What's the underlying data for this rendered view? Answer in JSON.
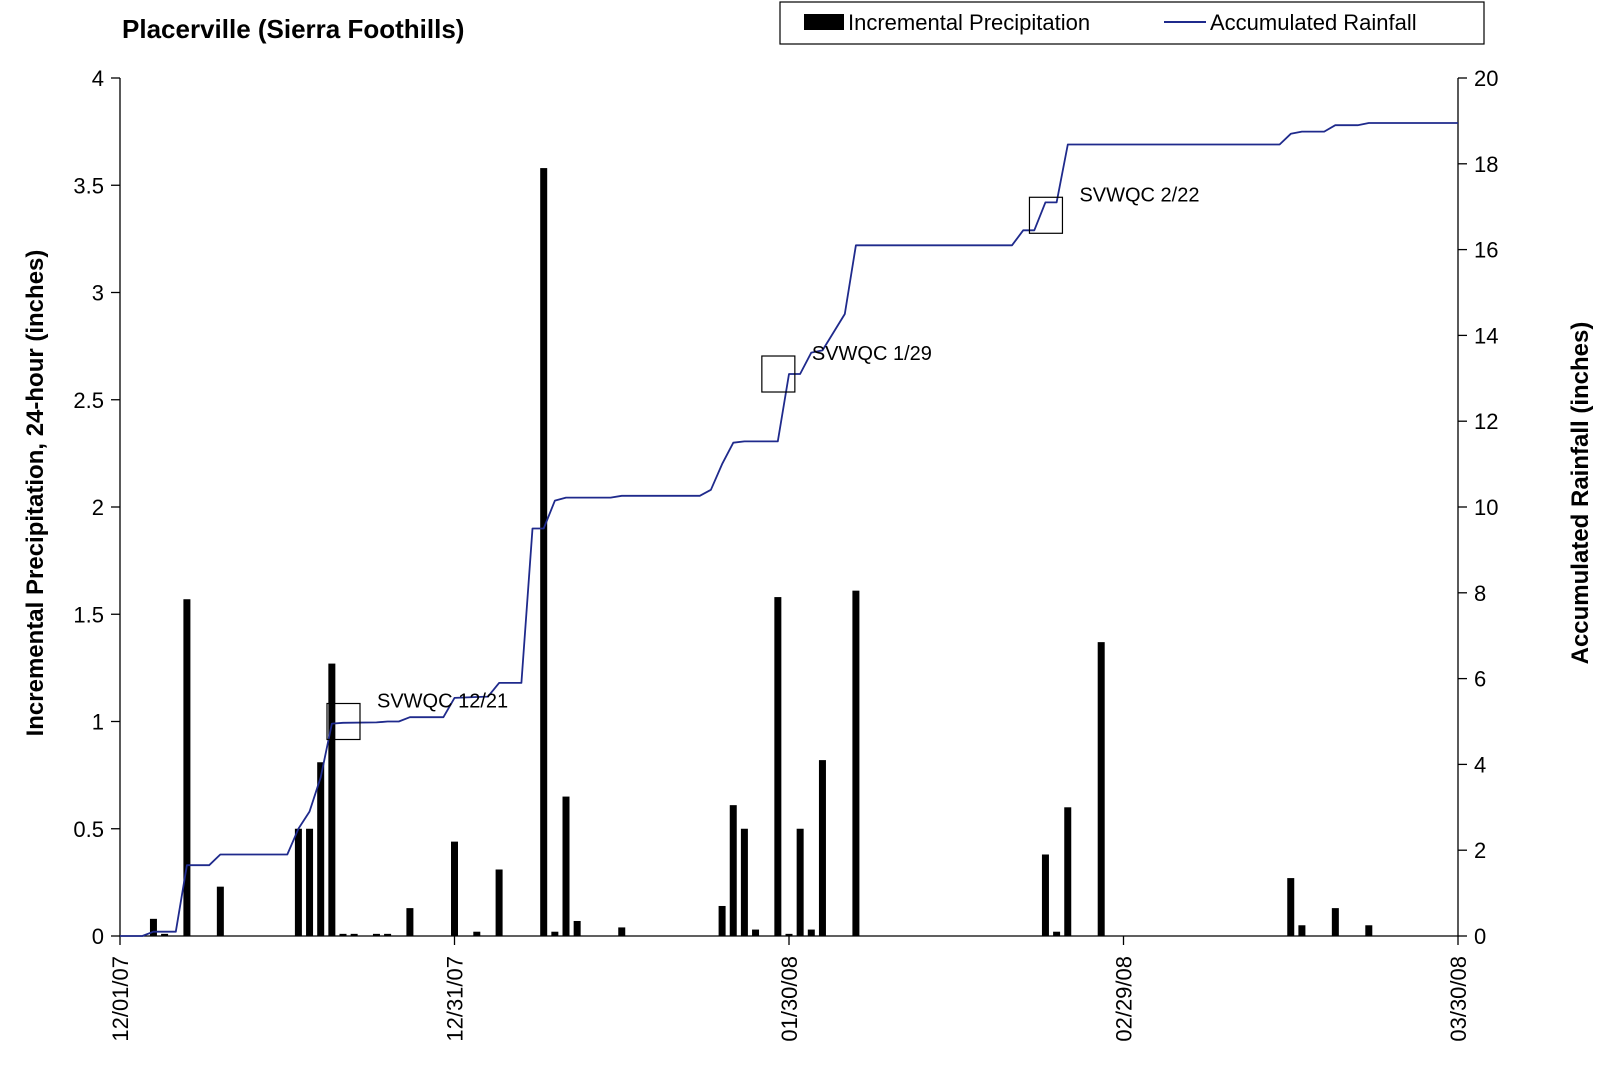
{
  "chart_data": {
    "type": "bar+line",
    "title": "Placerville (Sierra Foothills)",
    "y_left_label": "Incremental Precipitation, 24-hour (inches)",
    "y_right_label": "Accumulated Rainfall (inches)",
    "y_left_lim": [
      0,
      4
    ],
    "y_left_ticks": [
      "0",
      "0.5",
      "1",
      "1.5",
      "2",
      "2.5",
      "3",
      "3.5",
      "4"
    ],
    "y_right_lim": [
      0,
      20
    ],
    "y_right_ticks": [
      "0",
      "2",
      "4",
      "6",
      "8",
      "10",
      "12",
      "14",
      "16",
      "18",
      "20"
    ],
    "x_start": "2007-12-01",
    "x_end": "2008-03-30",
    "x_tick_dates": [
      "2007-12-01",
      "2007-12-31",
      "2008-01-30",
      "2008-02-29",
      "2008-03-30"
    ],
    "x_tick_labels": [
      "12/01/07",
      "12/31/07",
      "01/30/08",
      "02/29/08",
      "03/30/08"
    ],
    "bar_color": "#000000",
    "line_color": "#1f2a8c",
    "legend": {
      "position": "top-right",
      "bar_label": "Incremental Precipitation",
      "line_label": "Accumulated Rainfall"
    },
    "series": [
      {
        "name": "Incremental Precipitation",
        "kind": "bar",
        "axis": "left",
        "x": [
          "2007-12-04",
          "2007-12-05",
          "2007-12-07",
          "2007-12-10",
          "2007-12-17",
          "2007-12-18",
          "2007-12-19",
          "2007-12-20",
          "2007-12-21",
          "2007-12-22",
          "2007-12-24",
          "2007-12-25",
          "2007-12-27",
          "2007-12-31",
          "2008-01-02",
          "2008-01-04",
          "2008-01-08",
          "2008-01-09",
          "2008-01-10",
          "2008-01-11",
          "2008-01-15",
          "2008-01-24",
          "2008-01-25",
          "2008-01-26",
          "2008-01-27",
          "2008-01-29",
          "2008-01-30",
          "2008-01-31",
          "2008-02-01",
          "2008-02-02",
          "2008-02-05",
          "2008-02-22",
          "2008-02-23",
          "2008-02-24",
          "2008-02-27",
          "2008-03-15",
          "2008-03-16",
          "2008-03-19",
          "2008-03-22"
        ],
        "values": [
          0.08,
          0.01,
          1.57,
          0.23,
          0.5,
          0.5,
          0.81,
          1.27,
          0.01,
          0.01,
          0.01,
          0.01,
          0.13,
          0.44,
          0.02,
          0.31,
          3.58,
          0.02,
          0.65,
          0.07,
          0.04,
          0.14,
          0.61,
          0.5,
          0.03,
          1.58,
          0.01,
          0.5,
          0.03,
          0.82,
          1.61,
          0.38,
          0.02,
          0.6,
          1.37,
          0.27,
          0.05,
          0.13,
          0.05
        ]
      },
      {
        "name": "Accumulated Rainfall",
        "kind": "line",
        "axis": "right",
        "x": [
          "2007-12-01",
          "2007-12-03",
          "2007-12-04",
          "2007-12-05",
          "2007-12-06",
          "2007-12-07",
          "2007-12-09",
          "2007-12-10",
          "2007-12-16",
          "2007-12-17",
          "2007-12-18",
          "2007-12-19",
          "2007-12-20",
          "2007-12-21",
          "2007-12-24",
          "2007-12-25",
          "2007-12-26",
          "2007-12-27",
          "2007-12-30",
          "2007-12-31",
          "2008-01-02",
          "2008-01-03",
          "2008-01-04",
          "2008-01-06",
          "2008-01-07",
          "2008-01-08",
          "2008-01-09",
          "2008-01-10",
          "2008-01-11",
          "2008-01-14",
          "2008-01-15",
          "2008-01-22",
          "2008-01-23",
          "2008-01-24",
          "2008-01-25",
          "2008-01-26",
          "2008-01-29",
          "2008-01-30",
          "2008-01-31",
          "2008-02-01",
          "2008-02-02",
          "2008-02-04",
          "2008-02-05",
          "2008-02-19",
          "2008-02-20",
          "2008-02-21",
          "2008-02-22",
          "2008-02-23",
          "2008-02-24",
          "2008-02-25",
          "2008-02-26",
          "2008-03-14",
          "2008-03-15",
          "2008-03-16",
          "2008-03-18",
          "2008-03-19",
          "2008-03-21",
          "2008-03-22",
          "2008-03-30"
        ],
        "values": [
          0,
          0,
          0.1,
          0.1,
          0.1,
          1.65,
          1.65,
          1.9,
          1.9,
          2.5,
          2.9,
          3.7,
          4.95,
          4.97,
          4.98,
          5.0,
          5.0,
          5.1,
          5.1,
          5.55,
          5.57,
          5.58,
          5.9,
          5.9,
          9.5,
          9.5,
          10.15,
          10.22,
          10.22,
          10.22,
          10.26,
          10.26,
          10.4,
          11.0,
          11.5,
          11.53,
          11.53,
          13.1,
          13.1,
          13.6,
          13.65,
          14.5,
          16.1,
          16.1,
          16.45,
          16.45,
          17.1,
          17.1,
          18.45,
          18.45,
          18.45,
          18.45,
          18.7,
          18.75,
          18.75,
          18.9,
          18.9,
          18.95,
          18.95
        ]
      }
    ],
    "annotations": [
      {
        "text": "SVWQC 12/21",
        "date": "2007-12-21",
        "value": 5.0
      },
      {
        "text": "SVWQC 1/29",
        "date": "2008-01-29",
        "value": 13.1
      },
      {
        "text": "SVWQC 2/22",
        "date": "2008-02-22",
        "value": 16.8
      }
    ]
  }
}
